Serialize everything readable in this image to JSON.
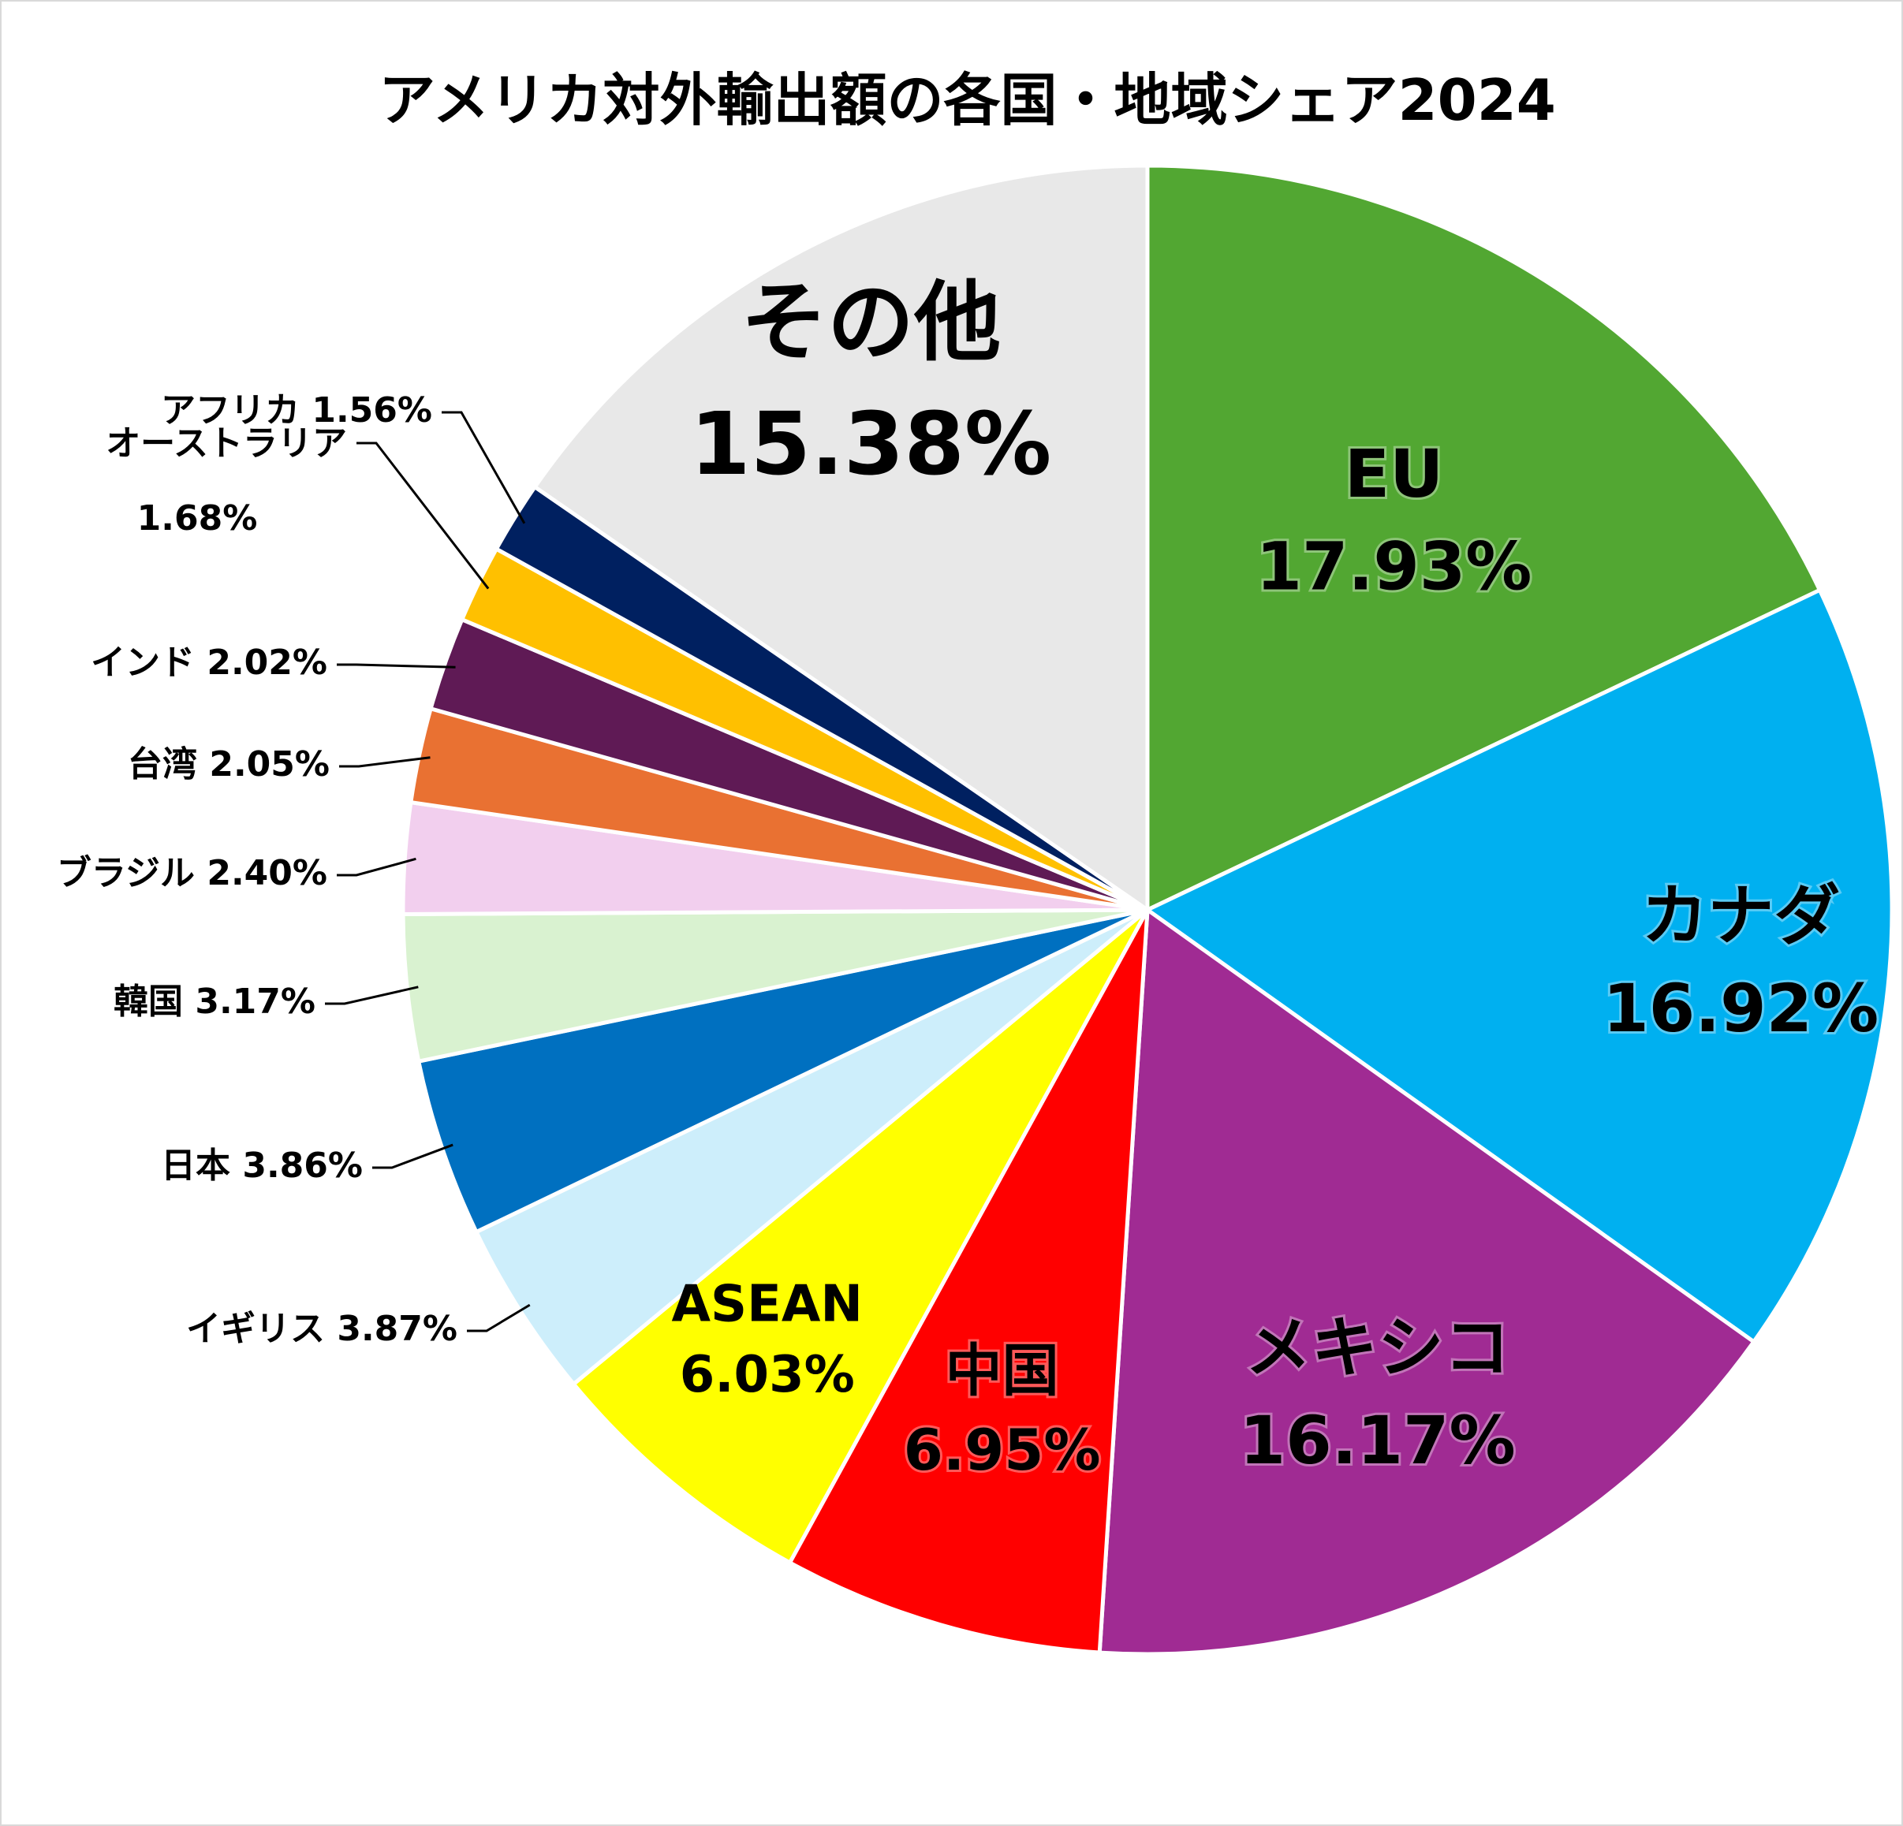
{
  "chart_data": {
    "type": "pie",
    "title": "アメリカ対外輸出額の各国・地域シェア2024",
    "slices": [
      {
        "label": "EU",
        "value_text": "17.93%",
        "value": 17.93,
        "color": "#52a732"
      },
      {
        "label": "カナダ",
        "value_text": "16.92%",
        "value": 16.92,
        "color": "#00b0f0"
      },
      {
        "label": "メキシコ",
        "value_text": "16.17%",
        "value": 16.17,
        "color": "#a02b93"
      },
      {
        "label": "中国",
        "value_text": "6.95%",
        "value": 6.95,
        "color": "#ff0000"
      },
      {
        "label": "ASEAN",
        "value_text": "6.03%",
        "value": 6.03,
        "color": "#ffff00"
      },
      {
        "label": "イギリス",
        "value_text": "3.87%",
        "value": 3.87,
        "color": "#cdeefb"
      },
      {
        "label": "日本",
        "value_text": "3.86%",
        "value": 3.86,
        "color": "#0070c0"
      },
      {
        "label": "韓国",
        "value_text": "3.17%",
        "value": 3.17,
        "color": "#d9f2d0"
      },
      {
        "label": "ブラジル",
        "value_text": "2.40%",
        "value": 2.4,
        "color": "#f2cfee"
      },
      {
        "label": "台湾",
        "value_text": "2.05%",
        "value": 2.05,
        "color": "#e97132"
      },
      {
        "label": "インド",
        "value_text": "2.02%",
        "value": 2.02,
        "color": "#5f1a55"
      },
      {
        "label": "オーストラリア",
        "value_text": "1.68%",
        "value": 1.68,
        "color": "#ffc000"
      },
      {
        "label": "アフリカ",
        "value_text": "1.56%",
        "value": 1.56,
        "color": "#002060"
      },
      {
        "label": "その他",
        "value_text": "15.38%",
        "value": 15.38,
        "color": "#e8e8e8"
      }
    ],
    "legend": "none"
  }
}
